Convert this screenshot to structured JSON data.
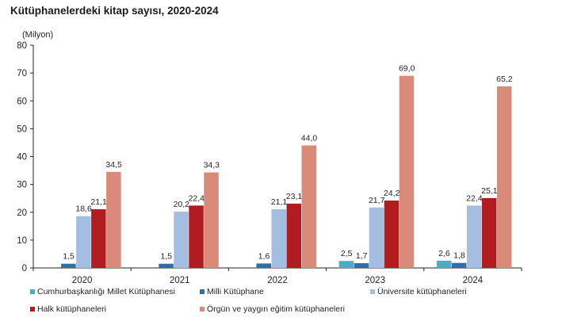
{
  "chart_data": {
    "type": "bar",
    "title": "Kütüphanelerdeki kitap sayısı, 2020-2024",
    "ylabel": "(Milyon)",
    "xlabel": "",
    "ylim": [
      0,
      80
    ],
    "yticks": [
      0,
      10,
      20,
      30,
      40,
      50,
      60,
      70,
      80
    ],
    "categories": [
      "2020",
      "2021",
      "2022",
      "2023",
      "2024"
    ],
    "grid": false,
    "legend_position": "bottom",
    "series": [
      {
        "name": "Cumhurbaşkanlığı Millet Kütüphanesi",
        "color": "#4BACC6",
        "values": [
          null,
          null,
          null,
          2.5,
          2.6
        ],
        "labels": [
          "",
          "",
          "",
          "2,5",
          "2,6"
        ]
      },
      {
        "name": "Milli Kütüphane",
        "color": "#2E6FA5",
        "values": [
          1.5,
          1.5,
          1.6,
          1.7,
          1.8
        ],
        "labels": [
          "1,5",
          "1,5",
          "1,6",
          "1,7",
          "1,8"
        ]
      },
      {
        "name": "Üniversite kütüphaneleri",
        "color": "#A3BEE0",
        "values": [
          18.6,
          20.2,
          21.1,
          21.7,
          22.4
        ],
        "labels": [
          "18,6",
          "20,2",
          "21,1",
          "21,7",
          "22,4"
        ]
      },
      {
        "name": "Halk kütüphaneleri",
        "color": "#B01C1F",
        "values": [
          21.1,
          22.4,
          23.1,
          24.2,
          25.1
        ],
        "labels": [
          "21,1",
          "22,4",
          "23,1",
          "24,2",
          "25,1"
        ]
      },
      {
        "name": "Örgün ve yaygın eğitim kütüphaneleri",
        "color": "#D98A78",
        "values": [
          34.5,
          34.3,
          44.0,
          69.0,
          65.2
        ],
        "labels": [
          "34,5",
          "34,3",
          "44,0",
          "69,0",
          "65,2"
        ]
      }
    ]
  },
  "legend": {
    "items": [
      {
        "label": "Cumhurbaşkanlığı Millet Kütüphanesi",
        "color": "#4BACC6"
      },
      {
        "label": "Milli Kütüphane",
        "color": "#2E6FA5"
      },
      {
        "label": "Üniversite kütüphaneleri",
        "color": "#A3BEE0"
      },
      {
        "label": "Halk kütüphaneleri",
        "color": "#B01C1F"
      },
      {
        "label": "Örgün ve yaygın eğitim kütüphaneleri",
        "color": "#D98A78"
      }
    ]
  }
}
